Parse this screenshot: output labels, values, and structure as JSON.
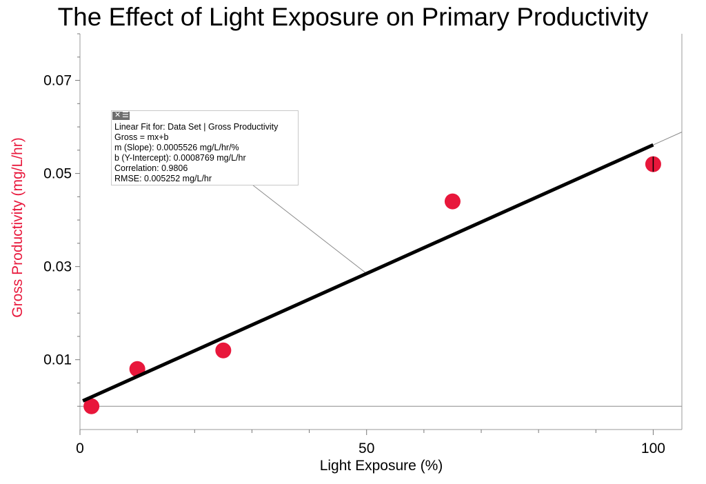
{
  "chart_data": {
    "type": "scatter",
    "title": "The Effect of Light Exposure on Primary Productivity",
    "xlabel": "Light Exposure (%)",
    "ylabel": "Gross Productivity (mg/L/hr)",
    "xlim": [
      0,
      105
    ],
    "ylim": [
      -0.005,
      0.08
    ],
    "x_ticks": [
      0,
      50,
      100
    ],
    "x_tick_labels": [
      "0",
      "50",
      "100"
    ],
    "y_ticks": [
      0.01,
      0.03,
      0.05,
      0.07
    ],
    "y_tick_labels": [
      "0.01",
      "0.03",
      "0.05",
      "0.07"
    ],
    "grid": false,
    "point_color": "#e8173b",
    "series": [
      {
        "x": [
          2,
          10,
          25,
          65,
          100
        ],
        "y": [
          0.0,
          0.008,
          0.012,
          0.044,
          0.052
        ]
      }
    ],
    "fit": {
      "type": "linear",
      "slope": 0.0005526,
      "intercept": 0.0008769,
      "x_range": [
        0.5,
        100
      ]
    },
    "annotation": {
      "lines": [
        "Linear Fit for: Data Set | Gross Productivity",
        "Gross = mx+b",
        "m (Slope): 0.0005526 mg/L/hr/%",
        "b (Y-Intercept): 0.0008769 mg/L/hr",
        "Correlation: 0.9806",
        "RMSE: 0.005252 mg/L/hr"
      ],
      "close_icon": "close-icon",
      "menu_icon": "menu-icon"
    }
  }
}
